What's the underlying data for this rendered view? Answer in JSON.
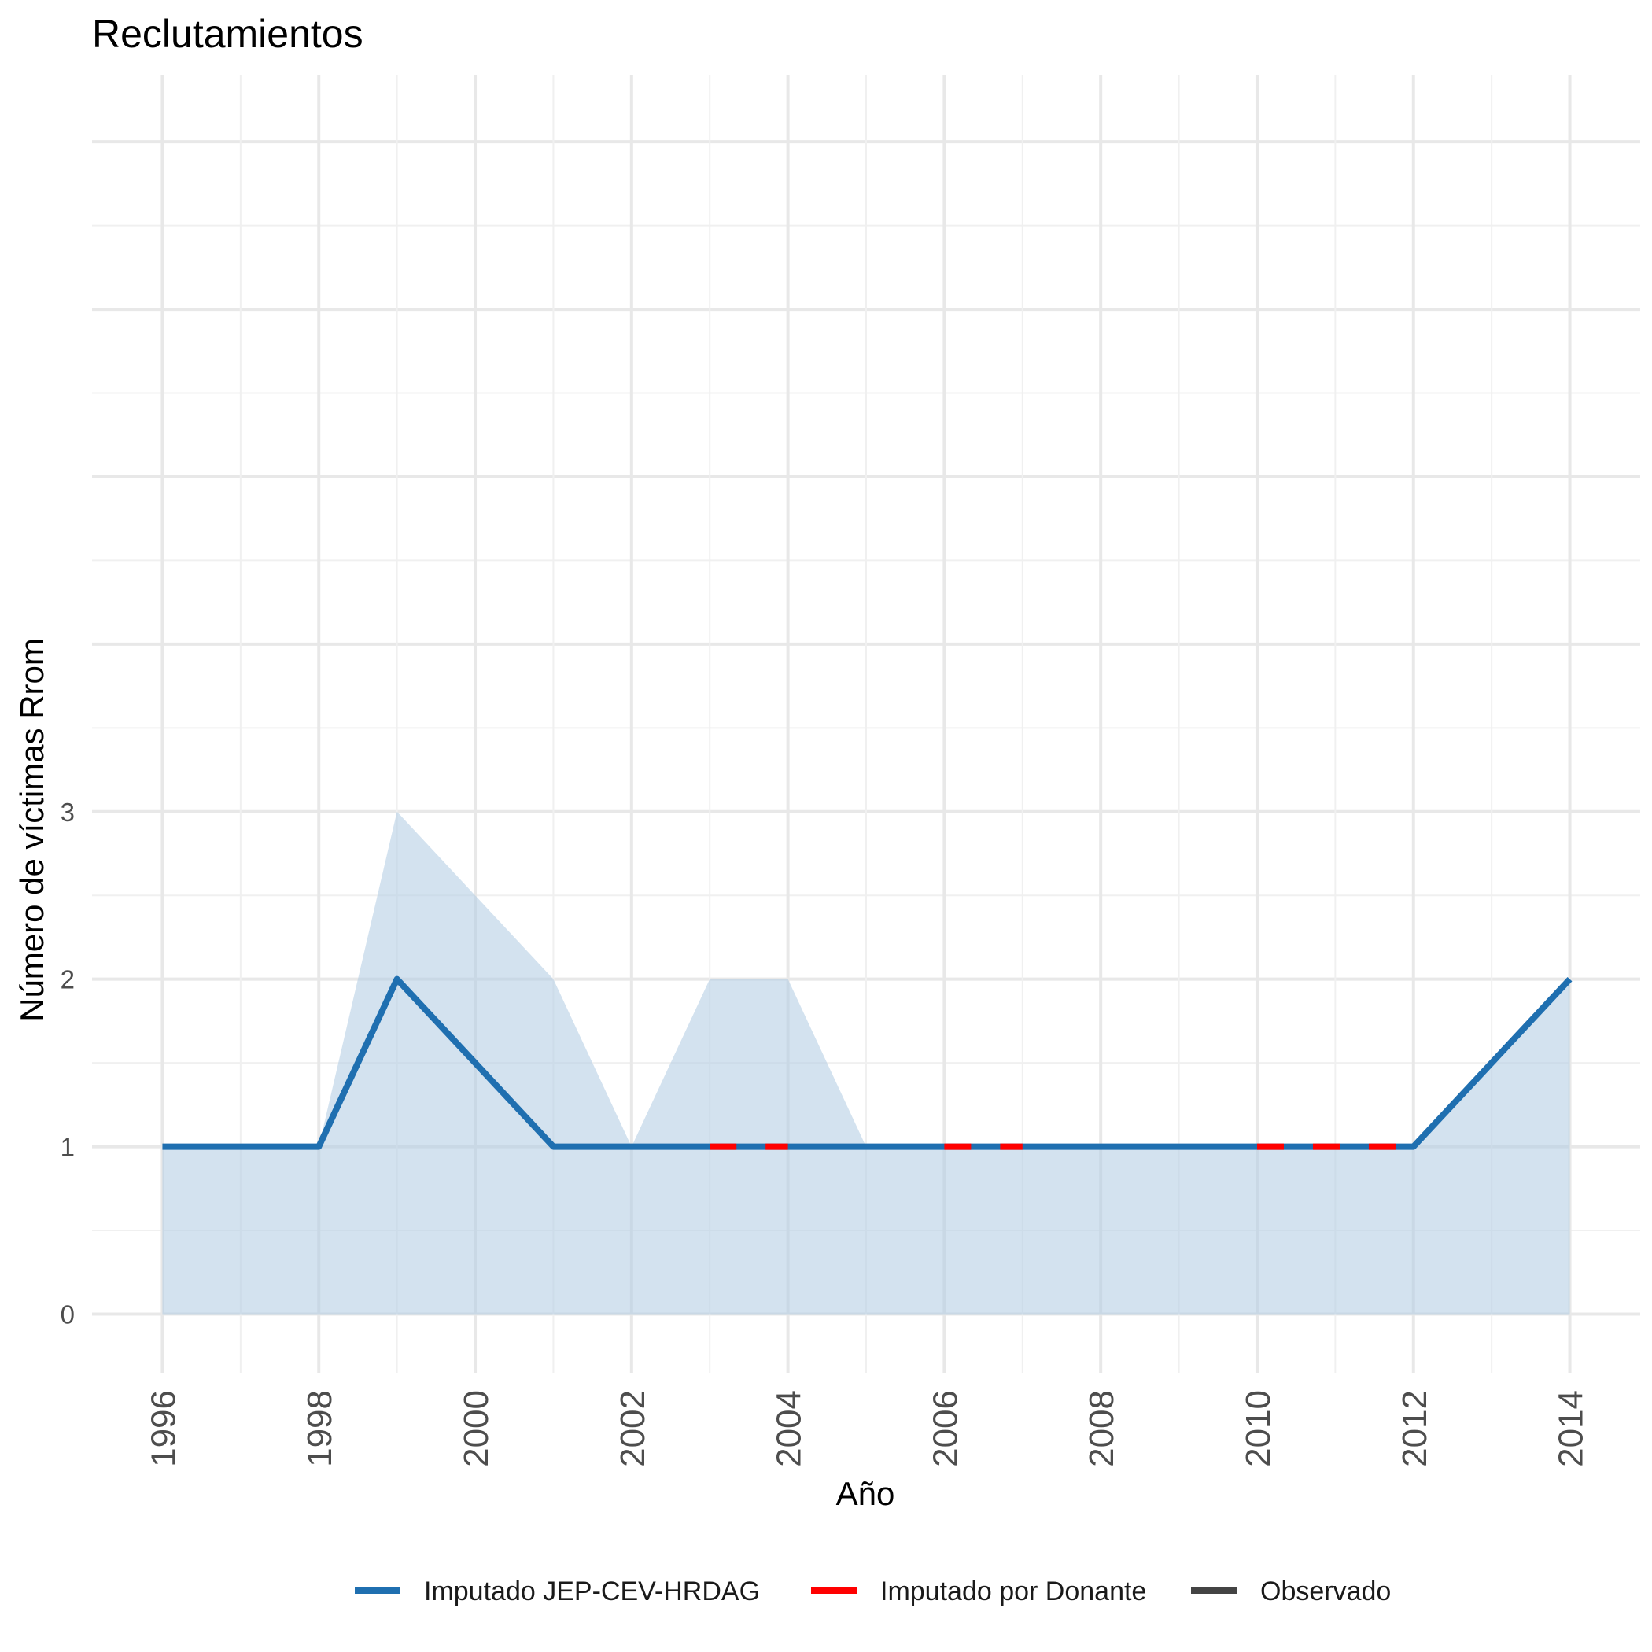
{
  "chart_data": {
    "type": "line",
    "title": "Reclutamientos",
    "xlabel": "Año",
    "ylabel": "Número de víctimas Rrom",
    "x_ticks": [
      "1996",
      "1998",
      "2000",
      "2002",
      "2004",
      "2006",
      "2008",
      "2010",
      "2012",
      "2014"
    ],
    "y_ticks": [
      "0",
      "1",
      "2",
      "3"
    ],
    "xlim": [
      1995.1,
      2014.9
    ],
    "ylim": [
      -0.35,
      7.4
    ],
    "grid": true,
    "legend_position": "bottom",
    "band": {
      "name": "",
      "color": "#b3cde3",
      "x": [
        1996,
        1997,
        1998,
        1999,
        2000,
        2001,
        2002,
        2003,
        2004,
        2005,
        2006,
        2007,
        2008,
        2009,
        2010,
        2011,
        2012,
        2013,
        2014
      ],
      "upper": [
        1,
        1,
        1,
        3,
        2.5,
        2,
        1,
        2,
        2,
        1,
        1,
        1,
        1,
        1,
        1,
        1,
        1,
        1.5,
        2
      ],
      "lower": [
        0,
        0,
        0,
        0,
        0,
        0,
        0,
        0,
        0,
        0,
        0,
        0,
        0,
        0,
        0,
        0,
        0,
        0,
        0
      ]
    },
    "series": [
      {
        "name": "Imputado JEP-CEV-HRDAG",
        "color": "#1f6fb0",
        "x": [
          1996,
          1997,
          1998,
          1999,
          2000,
          2001,
          2002,
          2003,
          2004,
          2005,
          2006,
          2007,
          2008,
          2009,
          2010,
          2011,
          2012,
          2013,
          2014
        ],
        "values": [
          1,
          1,
          1,
          2,
          1.5,
          1,
          1,
          1,
          1,
          1,
          1,
          1,
          1,
          1,
          1,
          1,
          1,
          1.5,
          2
        ]
      },
      {
        "name": "Imputado por Donante",
        "color": "#ff0000",
        "segments": [
          {
            "x": [
              2003,
              2004
            ],
            "values": [
              1,
              1
            ]
          },
          {
            "x": [
              2006,
              2007
            ],
            "values": [
              1,
              1
            ]
          },
          {
            "x": [
              2010,
              2012
            ],
            "values": [
              1,
              1
            ]
          }
        ]
      },
      {
        "name": "Observado",
        "color": "#444444",
        "x": [],
        "values": []
      }
    ]
  }
}
